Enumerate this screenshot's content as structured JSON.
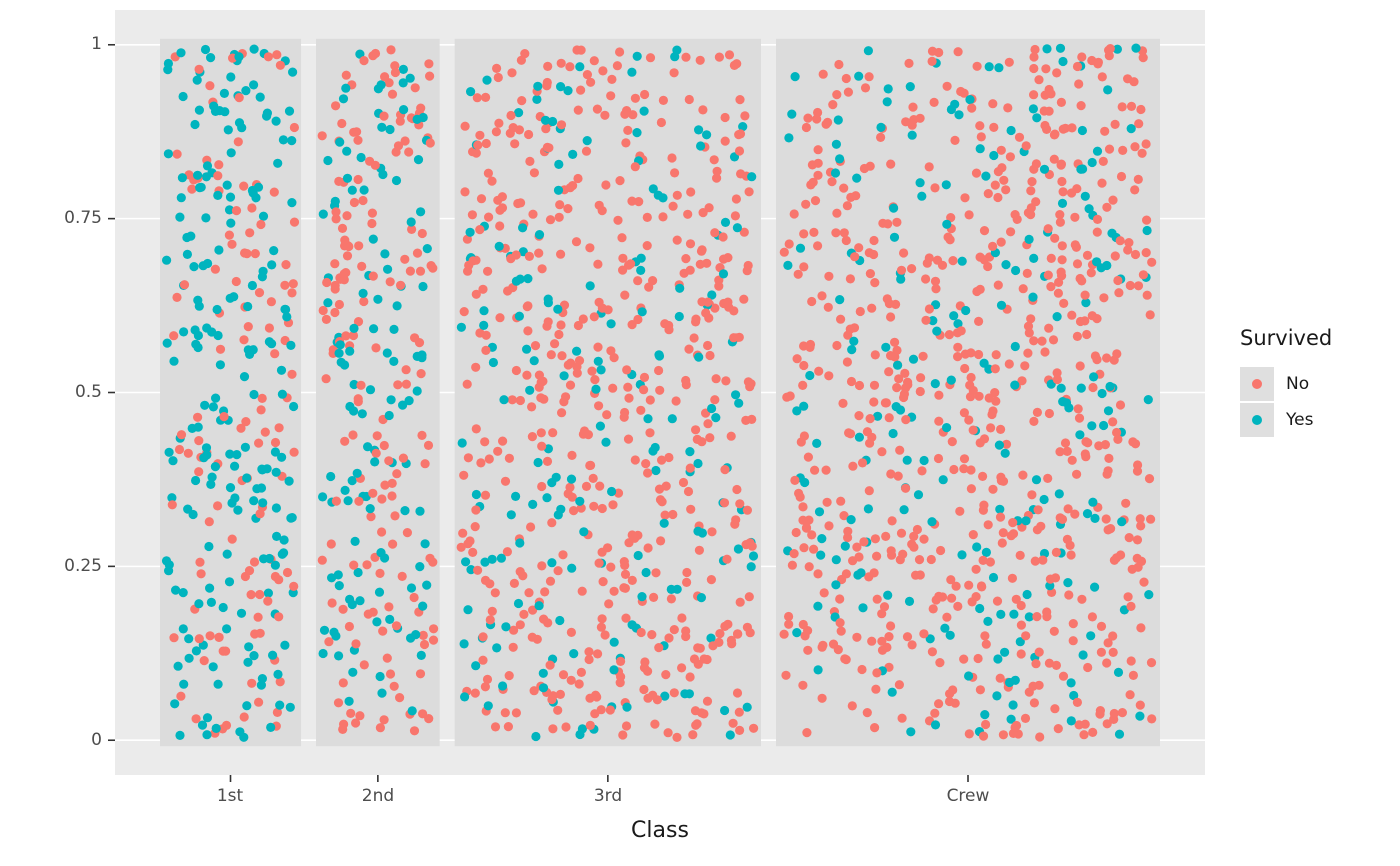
{
  "figure": {
    "background": "#FFFFFF",
    "panel_background": "#EBEBEB",
    "band_background": "#DCDCDC",
    "grid_color": "#FFFFFF",
    "tick_mark_color": "#333333",
    "axis_text_color": "#4D4D4D"
  },
  "chart_data": {
    "type": "scatter",
    "subtype": "jittered-points-by-category",
    "title": "",
    "xlabel": "Class",
    "ylabel": "",
    "categories": [
      "1st",
      "2nd",
      "3rd",
      "Crew"
    ],
    "x_tick_labels": [
      "1st",
      "2nd",
      "3rd",
      "Crew"
    ],
    "y_tick_labels": [
      "1",
      "0.75",
      "0.5",
      "0.25",
      "0"
    ],
    "y_tick_values": [
      1,
      0.75,
      0.5,
      0.25,
      0
    ],
    "ylim": [
      0,
      1
    ],
    "grid": "horizontal-major-only",
    "band_widths_proportional_to_class_totals": true,
    "class_totals": [
      325,
      285,
      706,
      885
    ],
    "series": [
      {
        "name": "No",
        "color": "#F8766D",
        "counts_by_class": [
          122,
          167,
          528,
          673
        ]
      },
      {
        "name": "Yes",
        "color": "#00B4BE",
        "counts_by_class": [
          203,
          118,
          178,
          212
        ]
      }
    ],
    "jitter": "y uniform in [0,1], x uniform within class band",
    "legend": {
      "title": "Survived",
      "position": "right",
      "entries": [
        {
          "label": "No",
          "color": "#F8766D"
        },
        {
          "label": "Yes",
          "color": "#00B4BE"
        }
      ]
    }
  }
}
